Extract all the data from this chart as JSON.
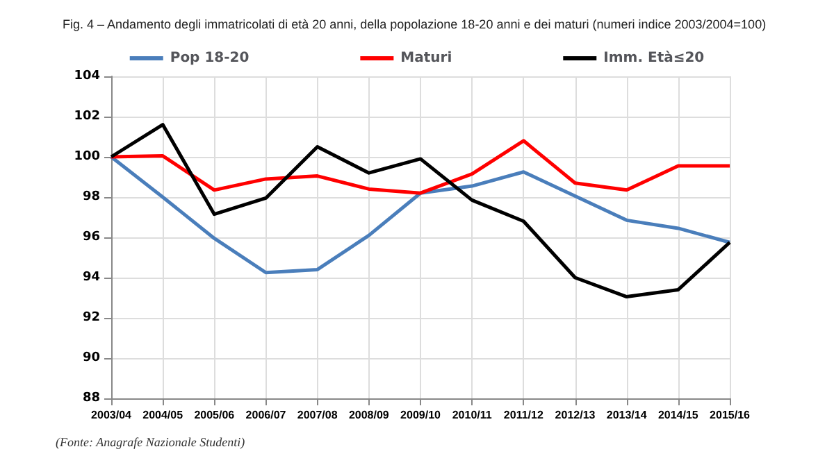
{
  "chart_data": {
    "type": "line",
    "title": "Fig. 4 – Andamento degli immatricolati di età 20 anni, della popolazione 18-20 anni e dei maturi (numeri indice 2003/2004=100)",
    "categories": [
      "2003/04",
      "2004/05",
      "2005/06",
      "2006/07",
      "2007/08",
      "2008/09",
      "2009/10",
      "2010/11",
      "2011/12",
      "2012/13",
      "2013/14",
      "2014/15",
      "2015/16"
    ],
    "series": [
      {
        "name": "Pop 18-20",
        "color": "#4a7ebb",
        "values": [
          100,
          98.0,
          95.95,
          94.25,
          94.4,
          96.1,
          98.2,
          98.55,
          99.25,
          98.05,
          96.85,
          96.45,
          95.75
        ]
      },
      {
        "name": "Maturi",
        "color": "#ff0000",
        "values": [
          100,
          100.05,
          98.35,
          98.9,
          99.05,
          98.4,
          98.2,
          99.15,
          100.8,
          98.7,
          98.35,
          99.55,
          99.55
        ]
      },
      {
        "name": "Imm. Età≤20",
        "color": "#000000",
        "values": [
          100,
          101.6,
          97.15,
          97.95,
          100.5,
          99.2,
          99.9,
          97.85,
          96.8,
          94.0,
          93.05,
          93.4,
          95.75
        ]
      }
    ],
    "ylim": [
      88,
      104
    ],
    "yticks": [
      88,
      90,
      92,
      94,
      96,
      98,
      100,
      102,
      104
    ],
    "grid": true,
    "legend": "top",
    "marker": "none",
    "line_style": "solid",
    "annotations": [
      "(Fonte: Anagrafe Nazionale Studenti)"
    ]
  }
}
